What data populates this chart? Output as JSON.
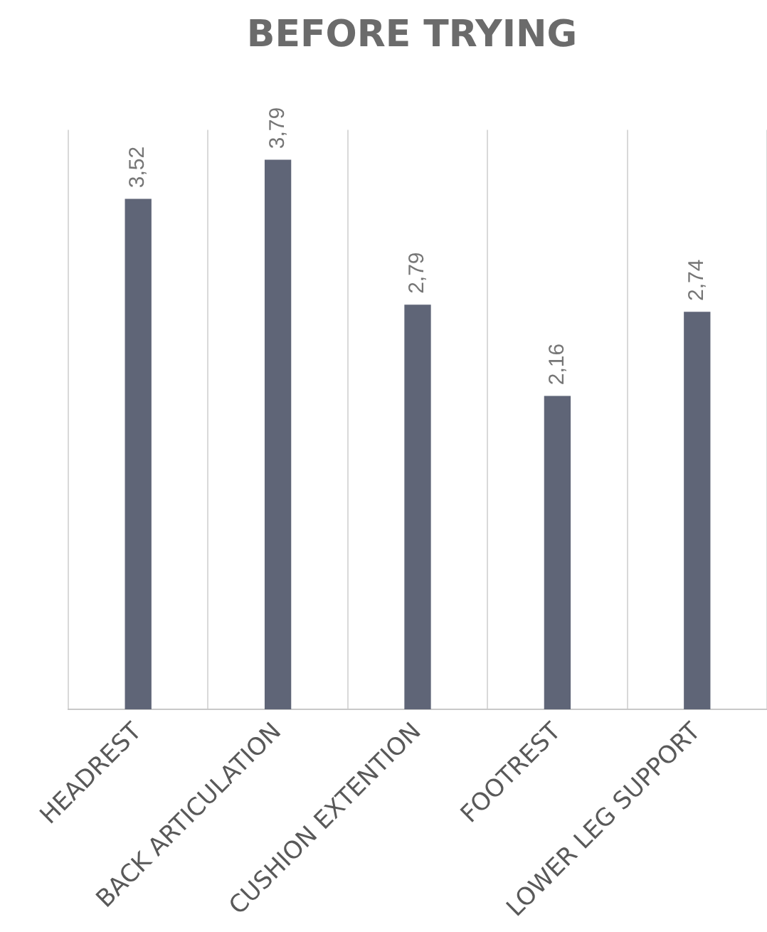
{
  "chart_data": {
    "type": "bar",
    "title": "BEFORE TRYING",
    "categories": [
      "HEADREST",
      "BACK ARTICULATION",
      "CUSHION EXTENTION",
      "FOOTREST",
      "LOWER LEG SUPPORT"
    ],
    "values": [
      3.52,
      3.79,
      2.79,
      2.16,
      2.74
    ],
    "value_labels": [
      "3,52",
      "3,79",
      "2,79",
      "2,16",
      "2,74"
    ],
    "color": "#5f6577",
    "ylim": [
      0,
      4
    ],
    "tick_labels": "x",
    "grid": "x",
    "legend": false
  }
}
